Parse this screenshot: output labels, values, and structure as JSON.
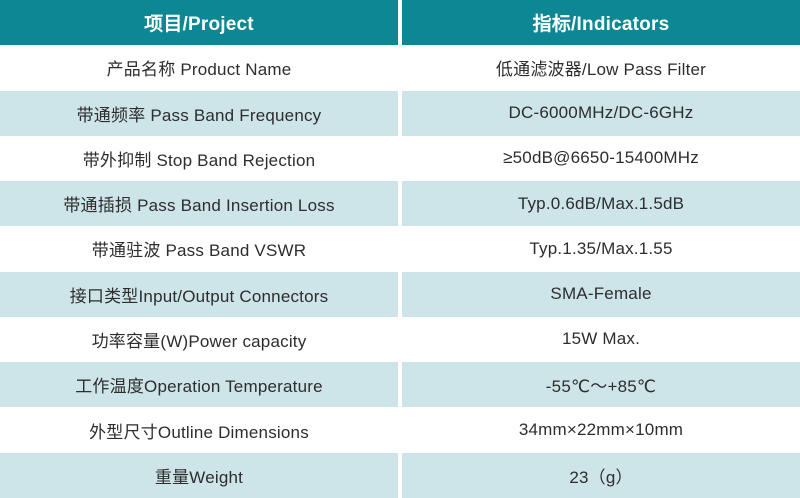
{
  "table": {
    "colors": {
      "header_bg": "#0d8794",
      "header_text": "#ffffff",
      "alt_row_bg": "#cde4e9",
      "row_bg": "#ffffff",
      "text": "#2d2d2d",
      "divider": "#ffffff"
    },
    "header": {
      "project": "项目/Project",
      "indicators": "指标/Indicators"
    },
    "rows": [
      {
        "project": "产品名称 Product Name",
        "indicator": "低通滤波器/Low Pass Filter"
      },
      {
        "project": "带通频率 Pass Band Frequency",
        "indicator": "DC-6000MHz/DC-6GHz"
      },
      {
        "project": "带外抑制 Stop Band Rejection",
        "indicator": "≥50dB@6650-15400MHz"
      },
      {
        "project": "带通插损 Pass Band Insertion Loss",
        "indicator": "Typ.0.6dB/Max.1.5dB"
      },
      {
        "project": "带通驻波 Pass Band VSWR",
        "indicator": "Typ.1.35/Max.1.55"
      },
      {
        "project": "接口类型Input/Output Connectors",
        "indicator": "SMA-Female"
      },
      {
        "project": "功率容量(W)Power capacity",
        "indicator": "15W Max."
      },
      {
        "project": "工作温度Operation Temperature",
        "indicator": "-55℃～+85℃"
      },
      {
        "project": "外型尺寸Outline Dimensions",
        "indicator": "34mm×22mm×10mm"
      },
      {
        "project": "重量Weight",
        "indicator": "23（g）"
      }
    ]
  }
}
